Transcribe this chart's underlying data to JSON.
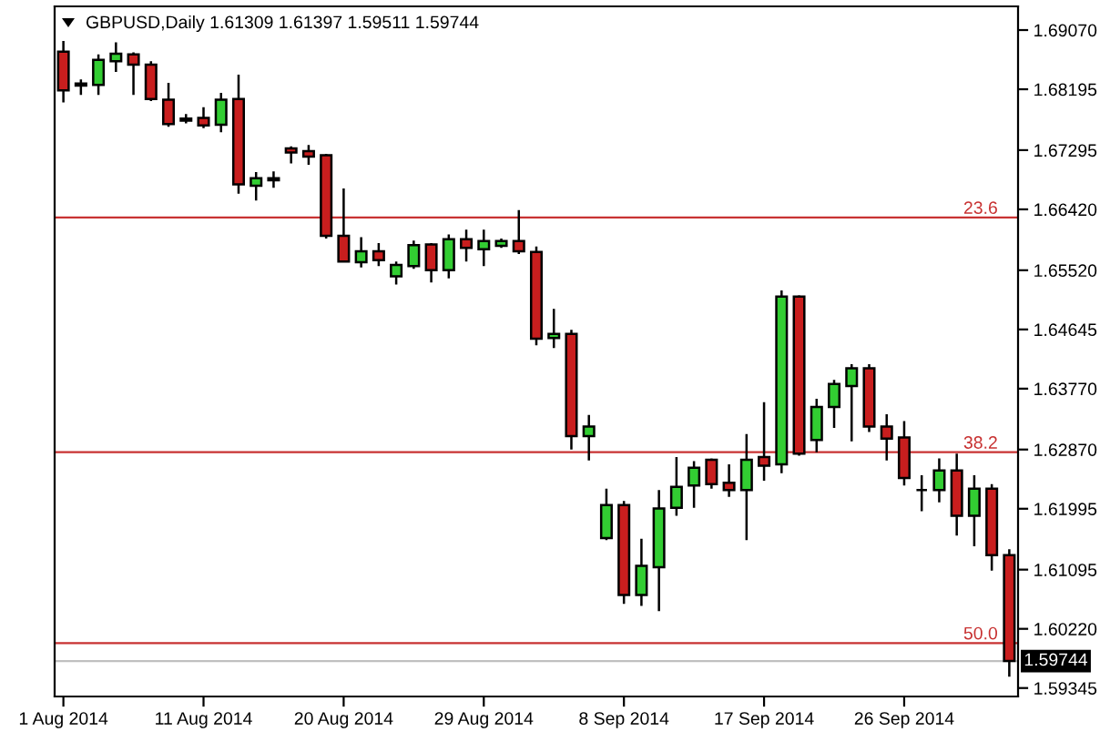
{
  "chart_data": {
    "type": "candlestick",
    "title": "GBPUSD,Daily 1.61309 1.61397 1.59511 1.59744",
    "categories": [
      "1 Aug 2014",
      null,
      null,
      null,
      null,
      null,
      null,
      null,
      "11 Aug 2014",
      null,
      null,
      null,
      null,
      null,
      null,
      null,
      "20 Aug 2014",
      null,
      null,
      null,
      null,
      null,
      null,
      null,
      "29 Aug 2014",
      null,
      null,
      null,
      null,
      null,
      null,
      null,
      "8 Sep 2014",
      null,
      null,
      null,
      null,
      null,
      null,
      null,
      "17 Sep 2014",
      null,
      null,
      null,
      null,
      null,
      null,
      null,
      "26 Sep 2014",
      null,
      null,
      null,
      null,
      null,
      null
    ],
    "ohlc": [
      [
        1.6875,
        1.6891,
        1.68,
        1.6818
      ],
      [
        1.6825,
        1.6834,
        1.6811,
        1.6828
      ],
      [
        1.6826,
        1.6871,
        1.6811,
        1.6863
      ],
      [
        1.6861,
        1.6889,
        1.6845,
        1.6872
      ],
      [
        1.6871,
        1.6874,
        1.6811,
        1.6856
      ],
      [
        1.6856,
        1.6861,
        1.6802,
        1.6805
      ],
      [
        1.6804,
        1.6829,
        1.6764,
        1.6768
      ],
      [
        1.6776,
        1.6783,
        1.6769,
        1.6773
      ],
      [
        1.6777,
        1.6793,
        1.6762,
        1.6766
      ],
      [
        1.6767,
        1.6814,
        1.6756,
        1.6804
      ],
      [
        1.6805,
        1.6841,
        1.6665,
        1.6679
      ],
      [
        1.6677,
        1.6697,
        1.6655,
        1.6688
      ],
      [
        1.6685,
        1.6698,
        1.6674,
        1.6688
      ],
      [
        1.6732,
        1.6735,
        1.671,
        1.6726
      ],
      [
        1.6728,
        1.6737,
        1.6708,
        1.672
      ],
      [
        1.6722,
        1.6724,
        1.6599,
        1.6603
      ],
      [
        1.6603,
        1.6673,
        1.6564,
        1.6565
      ],
      [
        1.6564,
        1.6601,
        1.6556,
        1.658
      ],
      [
        1.658,
        1.6592,
        1.6558,
        1.6567
      ],
      [
        1.6543,
        1.6565,
        1.6531,
        1.656
      ],
      [
        1.6558,
        1.6596,
        1.6554,
        1.6589
      ],
      [
        1.659,
        1.6592,
        1.6534,
        1.6552
      ],
      [
        1.6552,
        1.6605,
        1.654,
        1.6598
      ],
      [
        1.6598,
        1.6612,
        1.6565,
        1.6585
      ],
      [
        1.6583,
        1.6612,
        1.6558,
        1.6595
      ],
      [
        1.6588,
        1.6599,
        1.6585,
        1.6595
      ],
      [
        1.6595,
        1.6641,
        1.6576,
        1.658
      ],
      [
        1.6579,
        1.6587,
        1.6441,
        1.6451
      ],
      [
        1.6452,
        1.6495,
        1.6437,
        1.6458
      ],
      [
        1.6458,
        1.6464,
        1.6287,
        1.6307
      ],
      [
        1.6307,
        1.6338,
        1.6271,
        1.6321
      ],
      [
        1.6156,
        1.6229,
        1.6153,
        1.6205
      ],
      [
        1.6205,
        1.6211,
        1.6059,
        1.6072
      ],
      [
        1.6072,
        1.6155,
        1.6056,
        1.6115
      ],
      [
        1.6113,
        1.6227,
        1.6048,
        1.62
      ],
      [
        1.6201,
        1.6276,
        1.6189,
        1.6232
      ],
      [
        1.6234,
        1.627,
        1.6201,
        1.626
      ],
      [
        1.6272,
        1.6274,
        1.6229,
        1.6236
      ],
      [
        1.6238,
        1.6265,
        1.6217,
        1.6227
      ],
      [
        1.6227,
        1.631,
        1.6153,
        1.6272
      ],
      [
        1.6276,
        1.6357,
        1.6241,
        1.6263
      ],
      [
        1.6265,
        1.6522,
        1.6252,
        1.6513
      ],
      [
        1.6513,
        1.6515,
        1.6278,
        1.6281
      ],
      [
        1.6301,
        1.6362,
        1.6283,
        1.635
      ],
      [
        1.635,
        1.639,
        1.6319,
        1.6384
      ],
      [
        1.6381,
        1.6413,
        1.6299,
        1.6407
      ],
      [
        1.6407,
        1.6413,
        1.6313,
        1.6321
      ],
      [
        1.6321,
        1.6339,
        1.6271,
        1.6303
      ],
      [
        1.6305,
        1.6329,
        1.6234,
        1.6245
      ],
      [
        1.6227,
        1.6249,
        1.6196,
        1.6227
      ],
      [
        1.6227,
        1.6274,
        1.6209,
        1.6256
      ],
      [
        1.6256,
        1.6281,
        1.616,
        1.6189
      ],
      [
        1.6189,
        1.6249,
        1.6144,
        1.6229
      ],
      [
        1.6229,
        1.6236,
        1.6108,
        1.6131
      ],
      [
        1.61309,
        1.61397,
        1.59511,
        1.59744
      ]
    ],
    "colors": [
      "#c81e1e",
      "#000000",
      "#32cd32",
      "#32cd32",
      "#c81e1e",
      "#c81e1e",
      "#c81e1e",
      "#000000",
      "#c81e1e",
      "#32cd32",
      "#c81e1e",
      "#32cd32",
      "#000000",
      "#c81e1e",
      "#c81e1e",
      "#c81e1e",
      "#c81e1e",
      "#32cd32",
      "#c81e1e",
      "#32cd32",
      "#32cd32",
      "#c81e1e",
      "#32cd32",
      "#c81e1e",
      "#32cd32",
      "#32cd32",
      "#c81e1e",
      "#c81e1e",
      "#32cd32",
      "#c81e1e",
      "#32cd32",
      "#32cd32",
      "#c81e1e",
      "#32cd32",
      "#32cd32",
      "#32cd32",
      "#32cd32",
      "#c81e1e",
      "#c81e1e",
      "#32cd32",
      "#c81e1e",
      "#32cd32",
      "#c81e1e",
      "#32cd32",
      "#32cd32",
      "#32cd32",
      "#c81e1e",
      "#c81e1e",
      "#c81e1e",
      "#000000",
      "#32cd32",
      "#c81e1e",
      "#32cd32",
      "#c81e1e",
      "#c81e1e"
    ],
    "ylim": [
      1.5922,
      1.6942
    ],
    "yticks": [
      {
        "value": 1.59345,
        "label": "1.59345"
      },
      {
        "value": 1.6022,
        "label": "1.60220"
      },
      {
        "value": 1.61095,
        "label": "1.61095"
      },
      {
        "value": 1.61995,
        "label": "1.61995"
      },
      {
        "value": 1.6287,
        "label": "1.62870"
      },
      {
        "value": 1.6377,
        "label": "1.63770"
      },
      {
        "value": 1.64645,
        "label": "1.64645"
      },
      {
        "value": 1.6552,
        "label": "1.65520"
      },
      {
        "value": 1.6642,
        "label": "1.66420"
      },
      {
        "value": 1.67295,
        "label": "1.67295"
      },
      {
        "value": 1.68195,
        "label": "1.68195"
      },
      {
        "value": 1.6907,
        "label": "1.69070"
      }
    ],
    "ref_lines": [
      {
        "axis": "y",
        "value": 1.663,
        "color": "#c83232"
      },
      {
        "axis": "y",
        "value": 1.6283,
        "color": "#c83232"
      },
      {
        "axis": "y",
        "value": 1.6001,
        "color": "#c83232"
      },
      {
        "axis": "y",
        "value": 1.59744,
        "label": "1.59744",
        "color": "#c0c0c0"
      }
    ],
    "annotations": [
      {
        "text": "23.6",
        "y": 1.663
      },
      {
        "text": "38.2",
        "y": 1.6283
      },
      {
        "text": "50.0",
        "y": 1.6001
      }
    ],
    "grid": false
  }
}
